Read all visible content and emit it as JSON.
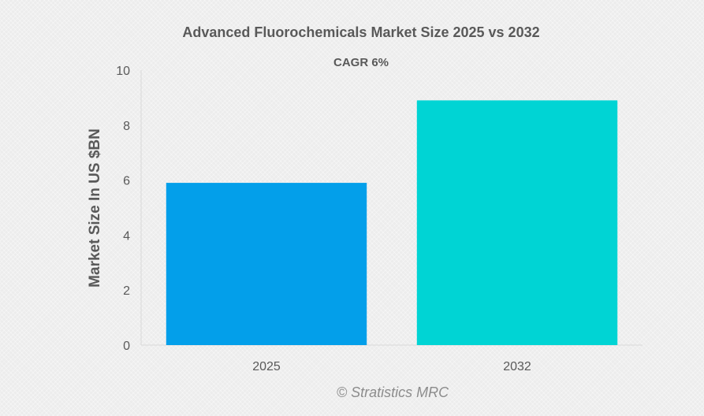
{
  "chart_data": {
    "type": "bar",
    "title": "Advanced Fluorochemicals Market Size 2025 vs 2032",
    "subtitle": "CAGR 6%",
    "categories": [
      "2025",
      "2032"
    ],
    "values": [
      5.9,
      8.9
    ],
    "colors": [
      "#039fea",
      "#00d4d4"
    ],
    "xlabel": "",
    "ylabel": "Market Size In US $BN",
    "ylim": [
      0,
      10
    ],
    "yticks": [
      "0",
      "2",
      "4",
      "6",
      "8",
      "10"
    ],
    "grid": false,
    "legend": "none"
  },
  "credit": "© Stratistics MRC"
}
